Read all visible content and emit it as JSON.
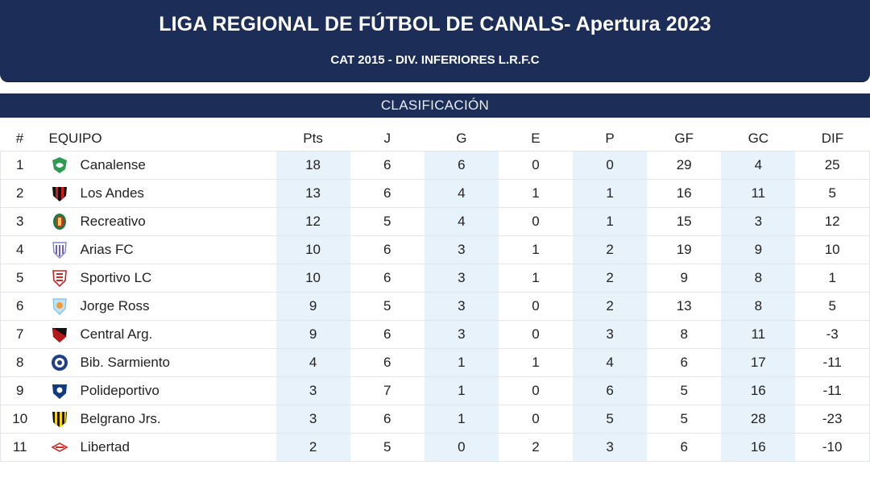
{
  "header": {
    "title": "LIGA REGIONAL DE FÚTBOL DE CANALS- Apertura 2023",
    "subtitle": "CAT 2015 - DIV. INFERIORES L.R.F.C"
  },
  "section": {
    "label": "CLASIFICACIÓN"
  },
  "table": {
    "columns": [
      "#",
      "EQUIPO",
      "Pts",
      "J",
      "G",
      "E",
      "P",
      "GF",
      "GC",
      "DIF"
    ],
    "rows": [
      {
        "pos": "1",
        "team": "Canalense",
        "crest": "canalense-crest-icon",
        "pts": "18",
        "j": "6",
        "g": "6",
        "e": "0",
        "p": "0",
        "gf": "29",
        "gc": "4",
        "dif": "25"
      },
      {
        "pos": "2",
        "team": "Los Andes",
        "crest": "los-andes-crest-icon",
        "pts": "13",
        "j": "6",
        "g": "4",
        "e": "1",
        "p": "1",
        "gf": "16",
        "gc": "11",
        "dif": "5"
      },
      {
        "pos": "3",
        "team": "Recreativo",
        "crest": "recreativo-crest-icon",
        "pts": "12",
        "j": "5",
        "g": "4",
        "e": "0",
        "p": "1",
        "gf": "15",
        "gc": "3",
        "dif": "12"
      },
      {
        "pos": "4",
        "team": "Arias FC",
        "crest": "arias-fc-crest-icon",
        "pts": "10",
        "j": "6",
        "g": "3",
        "e": "1",
        "p": "2",
        "gf": "19",
        "gc": "9",
        "dif": "10"
      },
      {
        "pos": "5",
        "team": "Sportivo LC",
        "crest": "sportivo-lc-crest-icon",
        "pts": "10",
        "j": "6",
        "g": "3",
        "e": "1",
        "p": "2",
        "gf": "9",
        "gc": "8",
        "dif": "1"
      },
      {
        "pos": "6",
        "team": "Jorge Ross",
        "crest": "jorge-ross-crest-icon",
        "pts": "9",
        "j": "5",
        "g": "3",
        "e": "0",
        "p": "2",
        "gf": "13",
        "gc": "8",
        "dif": "5"
      },
      {
        "pos": "7",
        "team": "Central Arg.",
        "crest": "central-arg-crest-icon",
        "pts": "9",
        "j": "6",
        "g": "3",
        "e": "0",
        "p": "3",
        "gf": "8",
        "gc": "11",
        "dif": "-3"
      },
      {
        "pos": "8",
        "team": "Bib. Sarmiento",
        "crest": "bib-sarmiento-crest-icon",
        "pts": "4",
        "j": "6",
        "g": "1",
        "e": "1",
        "p": "4",
        "gf": "6",
        "gc": "17",
        "dif": "-11"
      },
      {
        "pos": "9",
        "team": "Polideportivo",
        "crest": "polideportivo-crest-icon",
        "pts": "3",
        "j": "7",
        "g": "1",
        "e": "0",
        "p": "6",
        "gf": "5",
        "gc": "16",
        "dif": "-11"
      },
      {
        "pos": "10",
        "team": "Belgrano Jrs.",
        "crest": "belgrano-jrs-crest-icon",
        "pts": "3",
        "j": "6",
        "g": "1",
        "e": "0",
        "p": "5",
        "gf": "5",
        "gc": "28",
        "dif": "-23"
      },
      {
        "pos": "11",
        "team": "Libertad",
        "crest": "libertad-crest-icon",
        "pts": "2",
        "j": "5",
        "g": "0",
        "e": "2",
        "p": "3",
        "gf": "6",
        "gc": "16",
        "dif": "-10"
      }
    ]
  },
  "colors": {
    "header_bg": "#1c2d57",
    "shaded_column": "#e8f2fb",
    "row_border": "#e2e5ea"
  }
}
